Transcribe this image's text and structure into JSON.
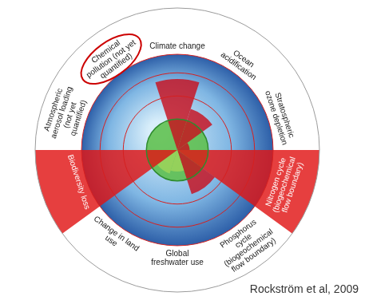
{
  "chart_data": {
    "type": "polarArea",
    "categories": [
      "Climate change",
      "Ocean acidification",
      "Stratospheric ozone depletion",
      "Nitrogen cycle (biogeochemical flow boundary)",
      "Phosphorus cycle (biogeochemical flow boundary)",
      "Global freshwater use",
      "Change in land use",
      "Biodiversity loss",
      "Atmospheric aerosol loading (not yet quantified)",
      "Chemical pollution (not yet quantified)"
    ],
    "values": [
      2.3,
      1.4,
      0.4,
      4.6,
      1.5,
      0.7,
      0.8,
      4.6,
      null,
      null
    ],
    "colors": [
      "#c8101e",
      "#c8101e",
      "#c8101e",
      "#e01515",
      "#c8101e",
      "#9fd45a",
      "#9fd45a",
      "#e01515",
      "#c8101e",
      "#c8101e"
    ],
    "safe_boundary": 1,
    "ylim": [
      0,
      4.6
    ],
    "yticks": [
      1.75,
      2.5,
      3.1
    ],
    "grid": true,
    "tick_labels": false,
    "highlight": "Chemical pollution (not yet quantified)",
    "credit": "Rockström et al, 2009"
  }
}
